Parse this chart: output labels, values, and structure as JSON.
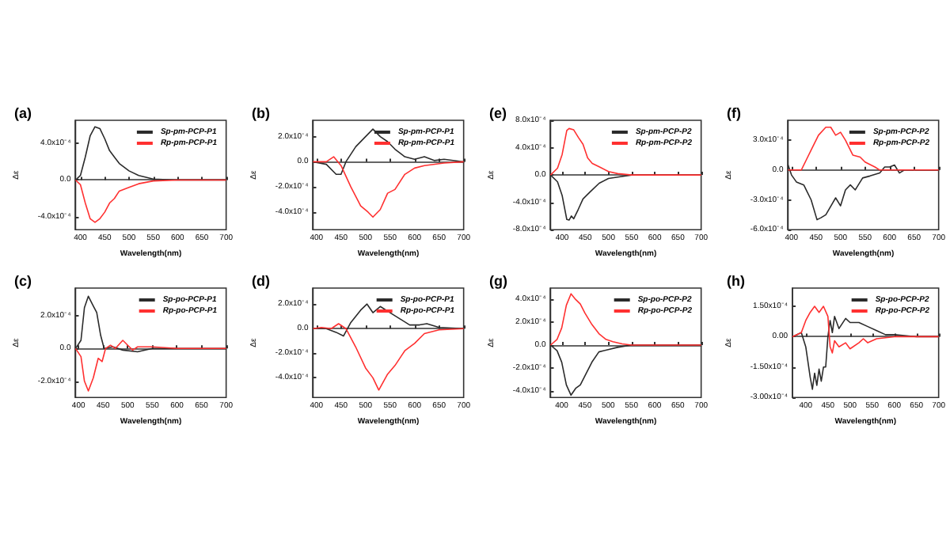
{
  "chart_data": [
    {
      "type": "line",
      "title": "(a)",
      "xlabel": "Wavelength(nm)",
      "ylabel": "Δε",
      "legend": "top right",
      "xlim": [
        390,
        700
      ],
      "xticks": [
        400,
        450,
        500,
        550,
        600,
        650,
        700
      ],
      "ylim": [
        -0.00054,
        0.00065
      ],
      "yticks": [
        {
          "value": -0.0004,
          "label": "-4.0x10⁻⁴"
        },
        {
          "value": 0,
          "label": "0.0"
        },
        {
          "value": 0.0004,
          "label": "4.0x10⁻⁴"
        }
      ],
      "series": [
        {
          "name": "Sp-pm-PCP-P1",
          "color": "#2b2b2b",
          "x": [
            390,
            400,
            410,
            420,
            430,
            440,
            450,
            460,
            470,
            480,
            500,
            520,
            550,
            600,
            700
          ],
          "values": [
            0,
            5e-05,
            0.00025,
            0.00048,
            0.00058,
            0.00056,
            0.00045,
            0.00032,
            0.00025,
            0.00018,
            0.0001,
            5e-05,
            1e-05,
            0,
            0
          ]
        },
        {
          "name": "Rp-pm-PCP-P1",
          "color": "#ff3030",
          "x": [
            390,
            400,
            410,
            420,
            430,
            440,
            450,
            460,
            470,
            480,
            500,
            520,
            550,
            600,
            700
          ],
          "values": [
            0,
            -5e-05,
            -0.00025,
            -0.00042,
            -0.00046,
            -0.00042,
            -0.00035,
            -0.00025,
            -0.0002,
            -0.00012,
            -8e-05,
            -4e-05,
            -1e-05,
            0,
            0
          ]
        }
      ]
    },
    {
      "type": "line",
      "title": "(b)",
      "xlabel": "Wavelength(nm)",
      "ylabel": "Δε",
      "legend": "top right",
      "xlim": [
        393,
        700
      ],
      "xticks": [
        400,
        450,
        500,
        550,
        600,
        650,
        700
      ],
      "ylim": [
        -0.00054,
        0.00033
      ],
      "yticks": [
        {
          "value": -0.0004,
          "label": "-4.0x10⁻⁴"
        },
        {
          "value": -0.0002,
          "label": "-2.0x10⁻⁴"
        },
        {
          "value": 0,
          "label": "0.0"
        },
        {
          "value": 0.0002,
          "label": "2.0x10⁻⁴"
        }
      ],
      "series": [
        {
          "name": "Sp-pm-PCP-P1",
          "color": "#2b2b2b",
          "x": [
            393,
            420,
            440,
            450,
            460,
            480,
            500,
            515,
            530,
            545,
            560,
            580,
            600,
            620,
            640,
            660,
            700
          ],
          "values": [
            0,
            -2e-05,
            -0.0001,
            -0.0001,
            0,
            0.00012,
            0.0002,
            0.00026,
            0.0002,
            0.00016,
            0.0001,
            4e-05,
            2e-05,
            4e-05,
            1e-05,
            2e-05,
            0
          ]
        },
        {
          "name": "Rp-pm-PCP-P1",
          "color": "#ff3030",
          "x": [
            393,
            420,
            435,
            450,
            470,
            490,
            505,
            515,
            530,
            545,
            560,
            580,
            600,
            620,
            660,
            700
          ],
          "values": [
            0,
            0,
            4e-05,
            -3e-05,
            -0.0002,
            -0.00035,
            -0.0004,
            -0.00044,
            -0.00038,
            -0.00025,
            -0.00022,
            -0.0001,
            -5e-05,
            -3e-05,
            -1e-05,
            0
          ]
        }
      ]
    },
    {
      "type": "line",
      "title": "(c)",
      "xlabel": "Wavelength(nm)",
      "ylabel": "Δε",
      "legend": "top right",
      "xlim": [
        394,
        700
      ],
      "xticks": [
        400,
        450,
        500,
        550,
        600,
        650,
        700
      ],
      "ylim": [
        -0.0003,
        0.00037
      ],
      "yticks": [
        {
          "value": -0.0002,
          "label": "-2.0x10⁻⁴"
        },
        {
          "value": 0,
          "label": "0.0"
        },
        {
          "value": 0.0002,
          "label": "2.0x10⁻⁴"
        }
      ],
      "series": [
        {
          "name": "Sp-po-PCP-P1",
          "color": "#2b2b2b",
          "x": [
            394,
            405,
            412,
            420,
            430,
            437,
            445,
            452,
            470,
            490,
            520,
            550,
            600,
            700
          ],
          "values": [
            0,
            5e-05,
            0.00025,
            0.00032,
            0.00026,
            0.00022,
            8e-05,
            0,
            1e-05,
            -1e-05,
            -2e-05,
            0,
            0,
            0
          ]
        },
        {
          "name": "Rp-po-PCP-P1",
          "color": "#ff3030",
          "x": [
            394,
            405,
            412,
            420,
            430,
            440,
            448,
            455,
            465,
            475,
            490,
            500,
            510,
            520,
            550,
            600,
            700
          ],
          "values": [
            0,
            -5e-05,
            -0.0002,
            -0.00026,
            -0.00018,
            -6e-05,
            -8e-05,
            0,
            2e-05,
            0,
            5e-05,
            2e-05,
            -1e-05,
            1e-05,
            1e-05,
            0,
            0
          ]
        }
      ]
    },
    {
      "type": "line",
      "title": "(d)",
      "xlabel": "Wavelength(nm)",
      "ylabel": "Δε",
      "legend": "top right",
      "xlim": [
        393,
        700
      ],
      "xticks": [
        400,
        450,
        500,
        550,
        600,
        650,
        700
      ],
      "ylim": [
        -0.00056,
        0.00033
      ],
      "yticks": [
        {
          "value": -0.0004,
          "label": "-4.0x10⁻⁴"
        },
        {
          "value": -0.0002,
          "label": "-2.0x10⁻⁴"
        },
        {
          "value": 0,
          "label": "0.0"
        },
        {
          "value": 0.0002,
          "label": "2.0x10⁻⁴"
        }
      ],
      "series": [
        {
          "name": "Sp-po-PCP-P1",
          "color": "#2b2b2b",
          "x": [
            393,
            420,
            440,
            455,
            470,
            490,
            503,
            515,
            530,
            550,
            570,
            590,
            610,
            625,
            650,
            700
          ],
          "values": [
            0,
            0,
            -3e-05,
            -6e-05,
            5e-05,
            0.00015,
            0.0002,
            0.00013,
            0.00018,
            0.00013,
            8e-05,
            3e-05,
            3e-05,
            4e-05,
            1e-05,
            0
          ]
        },
        {
          "name": "Rp-po-PCP-P1",
          "color": "#ff3030",
          "x": [
            393,
            410,
            430,
            445,
            460,
            480,
            500,
            515,
            527,
            545,
            560,
            580,
            600,
            620,
            650,
            700
          ],
          "values": [
            0,
            1e-05,
            0,
            4e-05,
            0,
            -0.00015,
            -0.00032,
            -0.0004,
            -0.0005,
            -0.00037,
            -0.0003,
            -0.00018,
            -0.00012,
            -4e-05,
            -1e-05,
            0
          ]
        }
      ]
    },
    {
      "type": "line",
      "title": "(e)",
      "xlabel": "Wavelength(nm)",
      "ylabel": "Δε",
      "legend": "top right",
      "xlim": [
        375,
        700
      ],
      "xticks": [
        400,
        450,
        500,
        550,
        600,
        650,
        700
      ],
      "ylim": [
        -0.0008,
        0.0008
      ],
      "yticks": [
        {
          "value": -0.0008,
          "label": "-8.0x10⁻⁴"
        },
        {
          "value": -0.0004,
          "label": "-4.0x10⁻⁴"
        },
        {
          "value": 0,
          "label": "0.0"
        },
        {
          "value": 0.0004,
          "label": "4.0x10⁻⁴"
        },
        {
          "value": 0.0008,
          "label": "8.0x10⁻⁴"
        }
      ],
      "series": [
        {
          "name": "Sp-pm-PCP-P2",
          "color": "#2b2b2b",
          "x": [
            375,
            390,
            400,
            410,
            415,
            420,
            425,
            435,
            445,
            460,
            480,
            500,
            520,
            550,
            700
          ],
          "values": [
            0,
            -0.0001,
            -0.0003,
            -0.00065,
            -0.00066,
            -0.0006,
            -0.00064,
            -0.0005,
            -0.00035,
            -0.00025,
            -0.00012,
            -5e-05,
            -3e-05,
            0,
            0
          ]
        },
        {
          "name": "Rp-pm-PCP-P2",
          "color": "#ff3030",
          "x": [
            375,
            390,
            400,
            410,
            415,
            425,
            435,
            445,
            455,
            465,
            480,
            500,
            520,
            550,
            700
          ],
          "values": [
            0,
            0.0001,
            0.0003,
            0.00065,
            0.00068,
            0.00066,
            0.00055,
            0.00045,
            0.00025,
            0.00017,
            0.00012,
            5e-05,
            2e-05,
            0,
            0
          ]
        }
      ]
    },
    {
      "type": "line",
      "title": "(f)",
      "xlabel": "Wavelength(nm)",
      "ylabel": "Δε",
      "legend": "top right",
      "xlim": [
        393,
        700
      ],
      "xticks": [
        400,
        450,
        500,
        550,
        600,
        650,
        700
      ],
      "ylim": [
        -0.0006,
        0.0005
      ],
      "yticks": [
        {
          "value": -0.0006,
          "label": "-6.0x10⁻⁴"
        },
        {
          "value": -0.0003,
          "label": "-3.0x10⁻⁴"
        },
        {
          "value": 0,
          "label": "0.0"
        },
        {
          "value": 0.0003,
          "label": "3.0x10⁻⁴"
        }
      ],
      "series": [
        {
          "name": "Sp-pm-PCP-P2",
          "color": "#2b2b2b",
          "x": [
            393,
            400,
            410,
            425,
            440,
            452,
            460,
            470,
            490,
            500,
            510,
            520,
            530,
            545,
            560,
            580,
            590,
            600,
            610,
            620,
            630,
            700
          ],
          "values": [
            5e-05,
            -5e-05,
            -0.00012,
            -0.00015,
            -0.0003,
            -0.0005,
            -0.00048,
            -0.00045,
            -0.00028,
            -0.00036,
            -0.0002,
            -0.00015,
            -0.0002,
            -8e-05,
            -6e-05,
            -3e-05,
            3e-05,
            3e-05,
            5e-05,
            -3e-05,
            0,
            0
          ]
        },
        {
          "name": "Rp-pm-PCP-P2",
          "color": "#ff3030",
          "x": [
            393,
            420,
            430,
            440,
            455,
            470,
            480,
            490,
            500,
            510,
            525,
            540,
            550,
            570,
            580,
            700
          ],
          "values": [
            0,
            0,
            0.0001,
            0.0002,
            0.00035,
            0.00043,
            0.00043,
            0.00035,
            0.00038,
            0.0003,
            0.00015,
            0.00013,
            8e-05,
            3e-05,
            0,
            0
          ]
        }
      ]
    },
    {
      "type": "line",
      "title": "(g)",
      "xlabel": "Wavelength(nm)",
      "ylabel": "Δε",
      "legend": "top right",
      "xlim": [
        376,
        700
      ],
      "xticks": [
        400,
        450,
        500,
        550,
        600,
        650,
        700
      ],
      "ylim": [
        -0.00046,
        0.0005
      ],
      "yticks": [
        {
          "value": -0.0004,
          "label": "-4.0x10⁻⁴"
        },
        {
          "value": -0.0002,
          "label": "-2.0x10⁻⁴"
        },
        {
          "value": 0,
          "label": "0.0"
        },
        {
          "value": 0.0002,
          "label": "2.0x10⁻⁴"
        },
        {
          "value": 0.0004,
          "label": "4.0x10⁻⁴"
        }
      ],
      "series": [
        {
          "name": "Sp-po-PCP-P2",
          "color": "#2b2b2b",
          "x": [
            376,
            390,
            400,
            410,
            420,
            430,
            440,
            450,
            465,
            480,
            500,
            520,
            550,
            700
          ],
          "values": [
            0,
            -5e-05,
            -0.00015,
            -0.00035,
            -0.00044,
            -0.00038,
            -0.00035,
            -0.00027,
            -0.00015,
            -6e-05,
            -4e-05,
            -2e-05,
            0,
            0
          ]
        },
        {
          "name": "Rp-po-PCP-P2",
          "color": "#ff3030",
          "x": [
            376,
            390,
            400,
            410,
            420,
            430,
            440,
            450,
            465,
            480,
            495,
            510,
            530,
            550,
            700
          ],
          "values": [
            0,
            5e-05,
            0.00015,
            0.00035,
            0.00045,
            0.0004,
            0.00036,
            0.00028,
            0.00018,
            0.0001,
            5e-05,
            3e-05,
            1e-05,
            0,
            0
          ]
        }
      ]
    },
    {
      "type": "line",
      "title": "(h)",
      "xlabel": "Wavelength(nm)",
      "ylabel": "Δε",
      "legend": "top right",
      "xlim": [
        370,
        700
      ],
      "xticks": [
        400,
        450,
        500,
        550,
        600,
        650,
        700
      ],
      "ylim": [
        -0.0003,
        0.00024
      ],
      "yticks": [
        {
          "value": -0.0003,
          "label": "-3.00x10⁻⁴"
        },
        {
          "value": -0.00015,
          "label": "-1.50x10⁻⁴"
        },
        {
          "value": 0,
          "label": "0.00"
        },
        {
          "value": 0.00015,
          "label": "1.50x10⁻⁴"
        }
      ],
      "series": [
        {
          "name": "Sp-po-PCP-P2",
          "color": "#2b2b2b",
          "x": [
            370,
            390,
            400,
            410,
            415,
            420,
            425,
            430,
            435,
            440,
            445,
            450,
            455,
            460,
            465,
            475,
            490,
            500,
            520,
            540,
            560,
            580,
            600,
            650,
            700
          ],
          "values": [
            0,
            2e-05,
            -5e-05,
            -0.0002,
            -0.00026,
            -0.00018,
            -0.00024,
            -0.00016,
            -0.00022,
            -0.00015,
            -0.00015,
            0,
            8e-05,
            2e-05,
            0.0001,
            4e-05,
            9e-05,
            7e-05,
            7e-05,
            5e-05,
            3e-05,
            1e-05,
            1e-05,
            0,
            0
          ]
        },
        {
          "name": "Rp-po-PCP-P2",
          "color": "#ff3030",
          "x": [
            370,
            390,
            400,
            410,
            420,
            430,
            440,
            450,
            455,
            460,
            465,
            475,
            490,
            500,
            520,
            530,
            540,
            560,
            600,
            700
          ],
          "values": [
            0,
            2e-05,
            8e-05,
            0.00012,
            0.00015,
            0.00012,
            0.00015,
            0.0001,
            -5e-05,
            -8e-05,
            -2e-05,
            -5e-05,
            -3e-05,
            -6e-05,
            -3e-05,
            -1e-05,
            -3e-05,
            -1e-05,
            0,
            0
          ]
        }
      ]
    }
  ]
}
